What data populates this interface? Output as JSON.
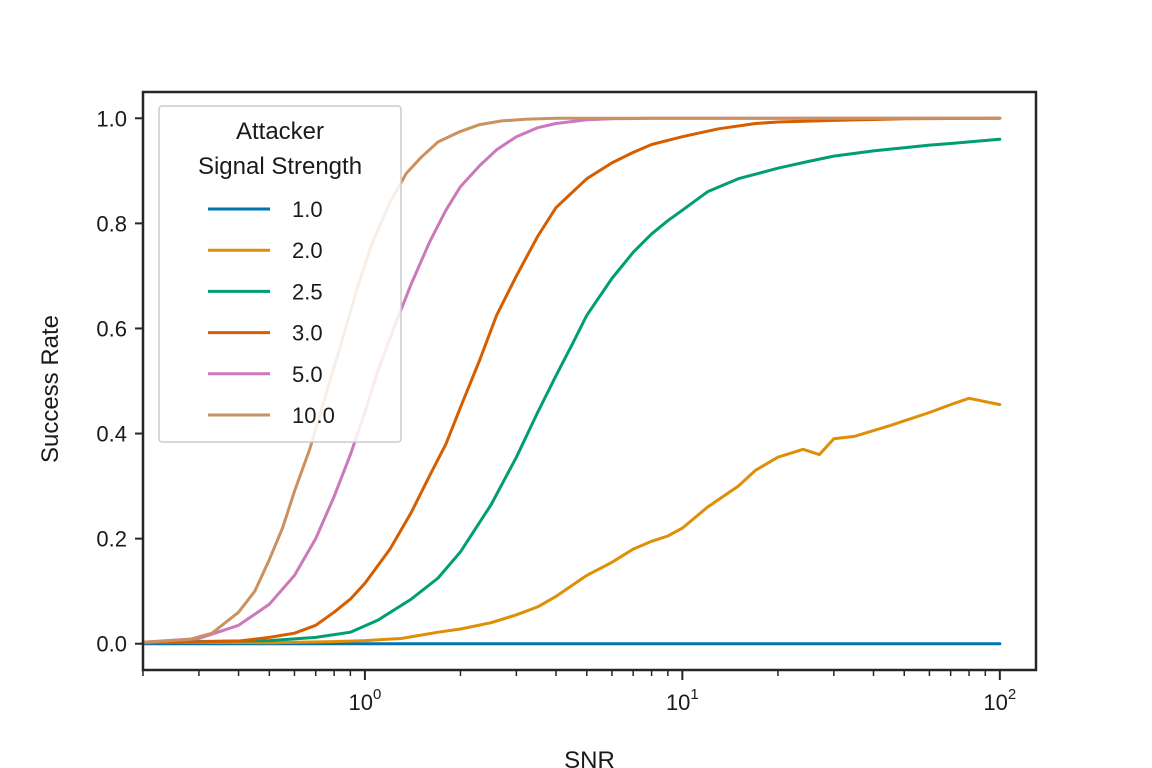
{
  "chart_data": {
    "type": "line",
    "xlabel": "SNR",
    "ylabel": "Success Rate",
    "xscale": "log",
    "xlim": [
      0.2,
      130
    ],
    "ylim": [
      -0.05,
      1.05
    ],
    "grid": false,
    "x_ticks": [
      {
        "base": "10",
        "exp": "0",
        "value": 1
      },
      {
        "base": "10",
        "exp": "1",
        "value": 10
      },
      {
        "base": "10",
        "exp": "2",
        "value": 100
      }
    ],
    "y_ticks": [
      {
        "label": "0.0",
        "value": 0.0
      },
      {
        "label": "0.2",
        "value": 0.2
      },
      {
        "label": "0.4",
        "value": 0.4
      },
      {
        "label": "0.6",
        "value": 0.6
      },
      {
        "label": "0.8",
        "value": 0.8
      },
      {
        "label": "1.0",
        "value": 1.0
      }
    ],
    "legend": {
      "title_lines": [
        "Attacker",
        "Signal Strength"
      ],
      "placement": "upper-left"
    },
    "series": [
      {
        "name": "1.0",
        "color": "#0173b2",
        "x": [
          0.2,
          1,
          10,
          100
        ],
        "y": [
          0.0,
          0.0,
          0.0,
          0.0
        ]
      },
      {
        "name": "2.0",
        "color": "#de8f05",
        "x": [
          0.2,
          0.5,
          0.8,
          1.0,
          1.3,
          1.7,
          2.0,
          2.5,
          3.0,
          3.5,
          4.0,
          5.0,
          6.0,
          7.0,
          8.0,
          9.0,
          10.0,
          12.0,
          15.0,
          17.0,
          20.0,
          24.0,
          27.0,
          30.0,
          35.0,
          45.0,
          60.0,
          70.0,
          80.0,
          100.0
        ],
        "y": [
          0.003,
          0.002,
          0.004,
          0.006,
          0.01,
          0.022,
          0.028,
          0.04,
          0.055,
          0.07,
          0.09,
          0.13,
          0.155,
          0.18,
          0.195,
          0.205,
          0.22,
          0.26,
          0.3,
          0.33,
          0.355,
          0.37,
          0.36,
          0.39,
          0.395,
          0.415,
          0.44,
          0.455,
          0.467,
          0.455
        ]
      },
      {
        "name": "2.5",
        "color": "#029e73",
        "x": [
          0.2,
          0.5,
          0.7,
          0.9,
          1.1,
          1.4,
          1.7,
          2.0,
          2.5,
          3.0,
          3.5,
          4.0,
          4.5,
          5.0,
          6.0,
          7.0,
          8.0,
          9.0,
          10.0,
          12.0,
          15.0,
          20.0,
          25.0,
          30.0,
          40.0,
          50.0,
          60.0,
          70.0,
          80.0,
          100.0
        ],
        "y": [
          0.003,
          0.006,
          0.012,
          0.022,
          0.045,
          0.085,
          0.125,
          0.175,
          0.265,
          0.355,
          0.44,
          0.51,
          0.57,
          0.625,
          0.695,
          0.745,
          0.78,
          0.805,
          0.825,
          0.86,
          0.885,
          0.905,
          0.918,
          0.928,
          0.938,
          0.944,
          0.949,
          0.952,
          0.955,
          0.96
        ]
      },
      {
        "name": "3.0",
        "color": "#d55e00",
        "x": [
          0.2,
          0.4,
          0.5,
          0.6,
          0.7,
          0.8,
          0.9,
          1.0,
          1.2,
          1.4,
          1.6,
          1.8,
          2.0,
          2.3,
          2.6,
          3.0,
          3.5,
          4.0,
          5.0,
          6.0,
          7.0,
          8.0,
          10.0,
          13.0,
          17.0,
          20.0,
          30.0,
          50.0,
          100.0
        ],
        "y": [
          0.002,
          0.005,
          0.012,
          0.02,
          0.035,
          0.06,
          0.085,
          0.115,
          0.18,
          0.25,
          0.32,
          0.38,
          0.45,
          0.54,
          0.625,
          0.7,
          0.775,
          0.83,
          0.885,
          0.915,
          0.935,
          0.95,
          0.965,
          0.98,
          0.99,
          0.993,
          0.996,
          0.999,
          1.0
        ]
      },
      {
        "name": "5.0",
        "color": "#cc78bc",
        "x": [
          0.2,
          0.3,
          0.4,
          0.5,
          0.6,
          0.7,
          0.8,
          0.9,
          1.0,
          1.1,
          1.25,
          1.4,
          1.6,
          1.8,
          2.0,
          2.3,
          2.6,
          3.0,
          3.5,
          4.0,
          5.0,
          6.0,
          8.0,
          100.0
        ],
        "y": [
          0.003,
          0.01,
          0.035,
          0.075,
          0.13,
          0.2,
          0.28,
          0.36,
          0.44,
          0.52,
          0.61,
          0.685,
          0.765,
          0.825,
          0.87,
          0.91,
          0.94,
          0.965,
          0.982,
          0.99,
          0.997,
          0.999,
          1.0,
          1.0
        ]
      },
      {
        "name": "10.0",
        "color": "#ca9161",
        "x": [
          0.2,
          0.28,
          0.33,
          0.4,
          0.45,
          0.5,
          0.55,
          0.6,
          0.67,
          0.75,
          0.85,
          0.95,
          1.05,
          1.2,
          1.35,
          1.5,
          1.7,
          2.0,
          2.3,
          2.7,
          3.2,
          4.0,
          5.0,
          100.0
        ],
        "y": [
          0.003,
          0.008,
          0.02,
          0.06,
          0.1,
          0.16,
          0.22,
          0.29,
          0.37,
          0.47,
          0.58,
          0.68,
          0.76,
          0.84,
          0.895,
          0.925,
          0.955,
          0.975,
          0.988,
          0.995,
          0.998,
          1.0,
          1.0,
          1.0
        ]
      }
    ]
  }
}
